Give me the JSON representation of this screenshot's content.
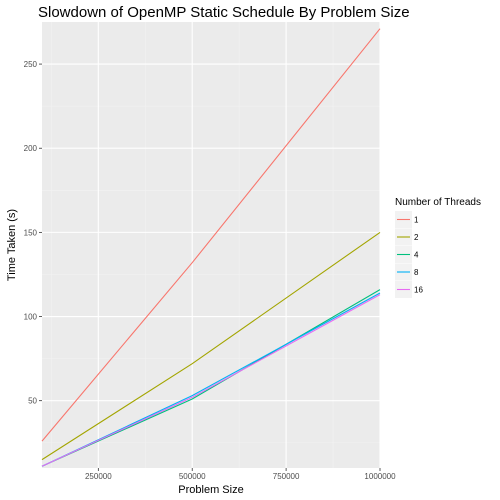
{
  "chart_data": {
    "type": "line",
    "title": "Slowdown of OpenMP Static Schedule By Problem Size",
    "xlabel": "Problem Size",
    "ylabel": "Time Taken (s)",
    "xlim": [
      100000,
      1000000
    ],
    "ylim": [
      10,
      275
    ],
    "x_ticks": [
      250000,
      500000,
      750000,
      1000000
    ],
    "y_ticks": [
      50,
      100,
      150,
      200,
      250
    ],
    "grid": true,
    "legend": {
      "title": "Number of Threads",
      "placement": "right"
    },
    "series": [
      {
        "name": "1",
        "color": "#F8766D",
        "x": [
          100000,
          500000,
          1000000
        ],
        "values": [
          26,
          132,
          271
        ]
      },
      {
        "name": "2",
        "color": "#A3A500",
        "x": [
          100000,
          500000,
          1000000
        ],
        "values": [
          15,
          72,
          150
        ]
      },
      {
        "name": "4",
        "color": "#00BF7D",
        "x": [
          100000,
          500000,
          1000000
        ],
        "values": [
          11,
          51,
          116
        ]
      },
      {
        "name": "8",
        "color": "#00B0F6",
        "x": [
          100000,
          500000,
          1000000
        ],
        "values": [
          11,
          53,
          114
        ]
      },
      {
        "name": "16",
        "color": "#E76BF3",
        "x": [
          100000,
          500000,
          1000000
        ],
        "values": [
          11,
          52,
          113
        ]
      }
    ]
  }
}
